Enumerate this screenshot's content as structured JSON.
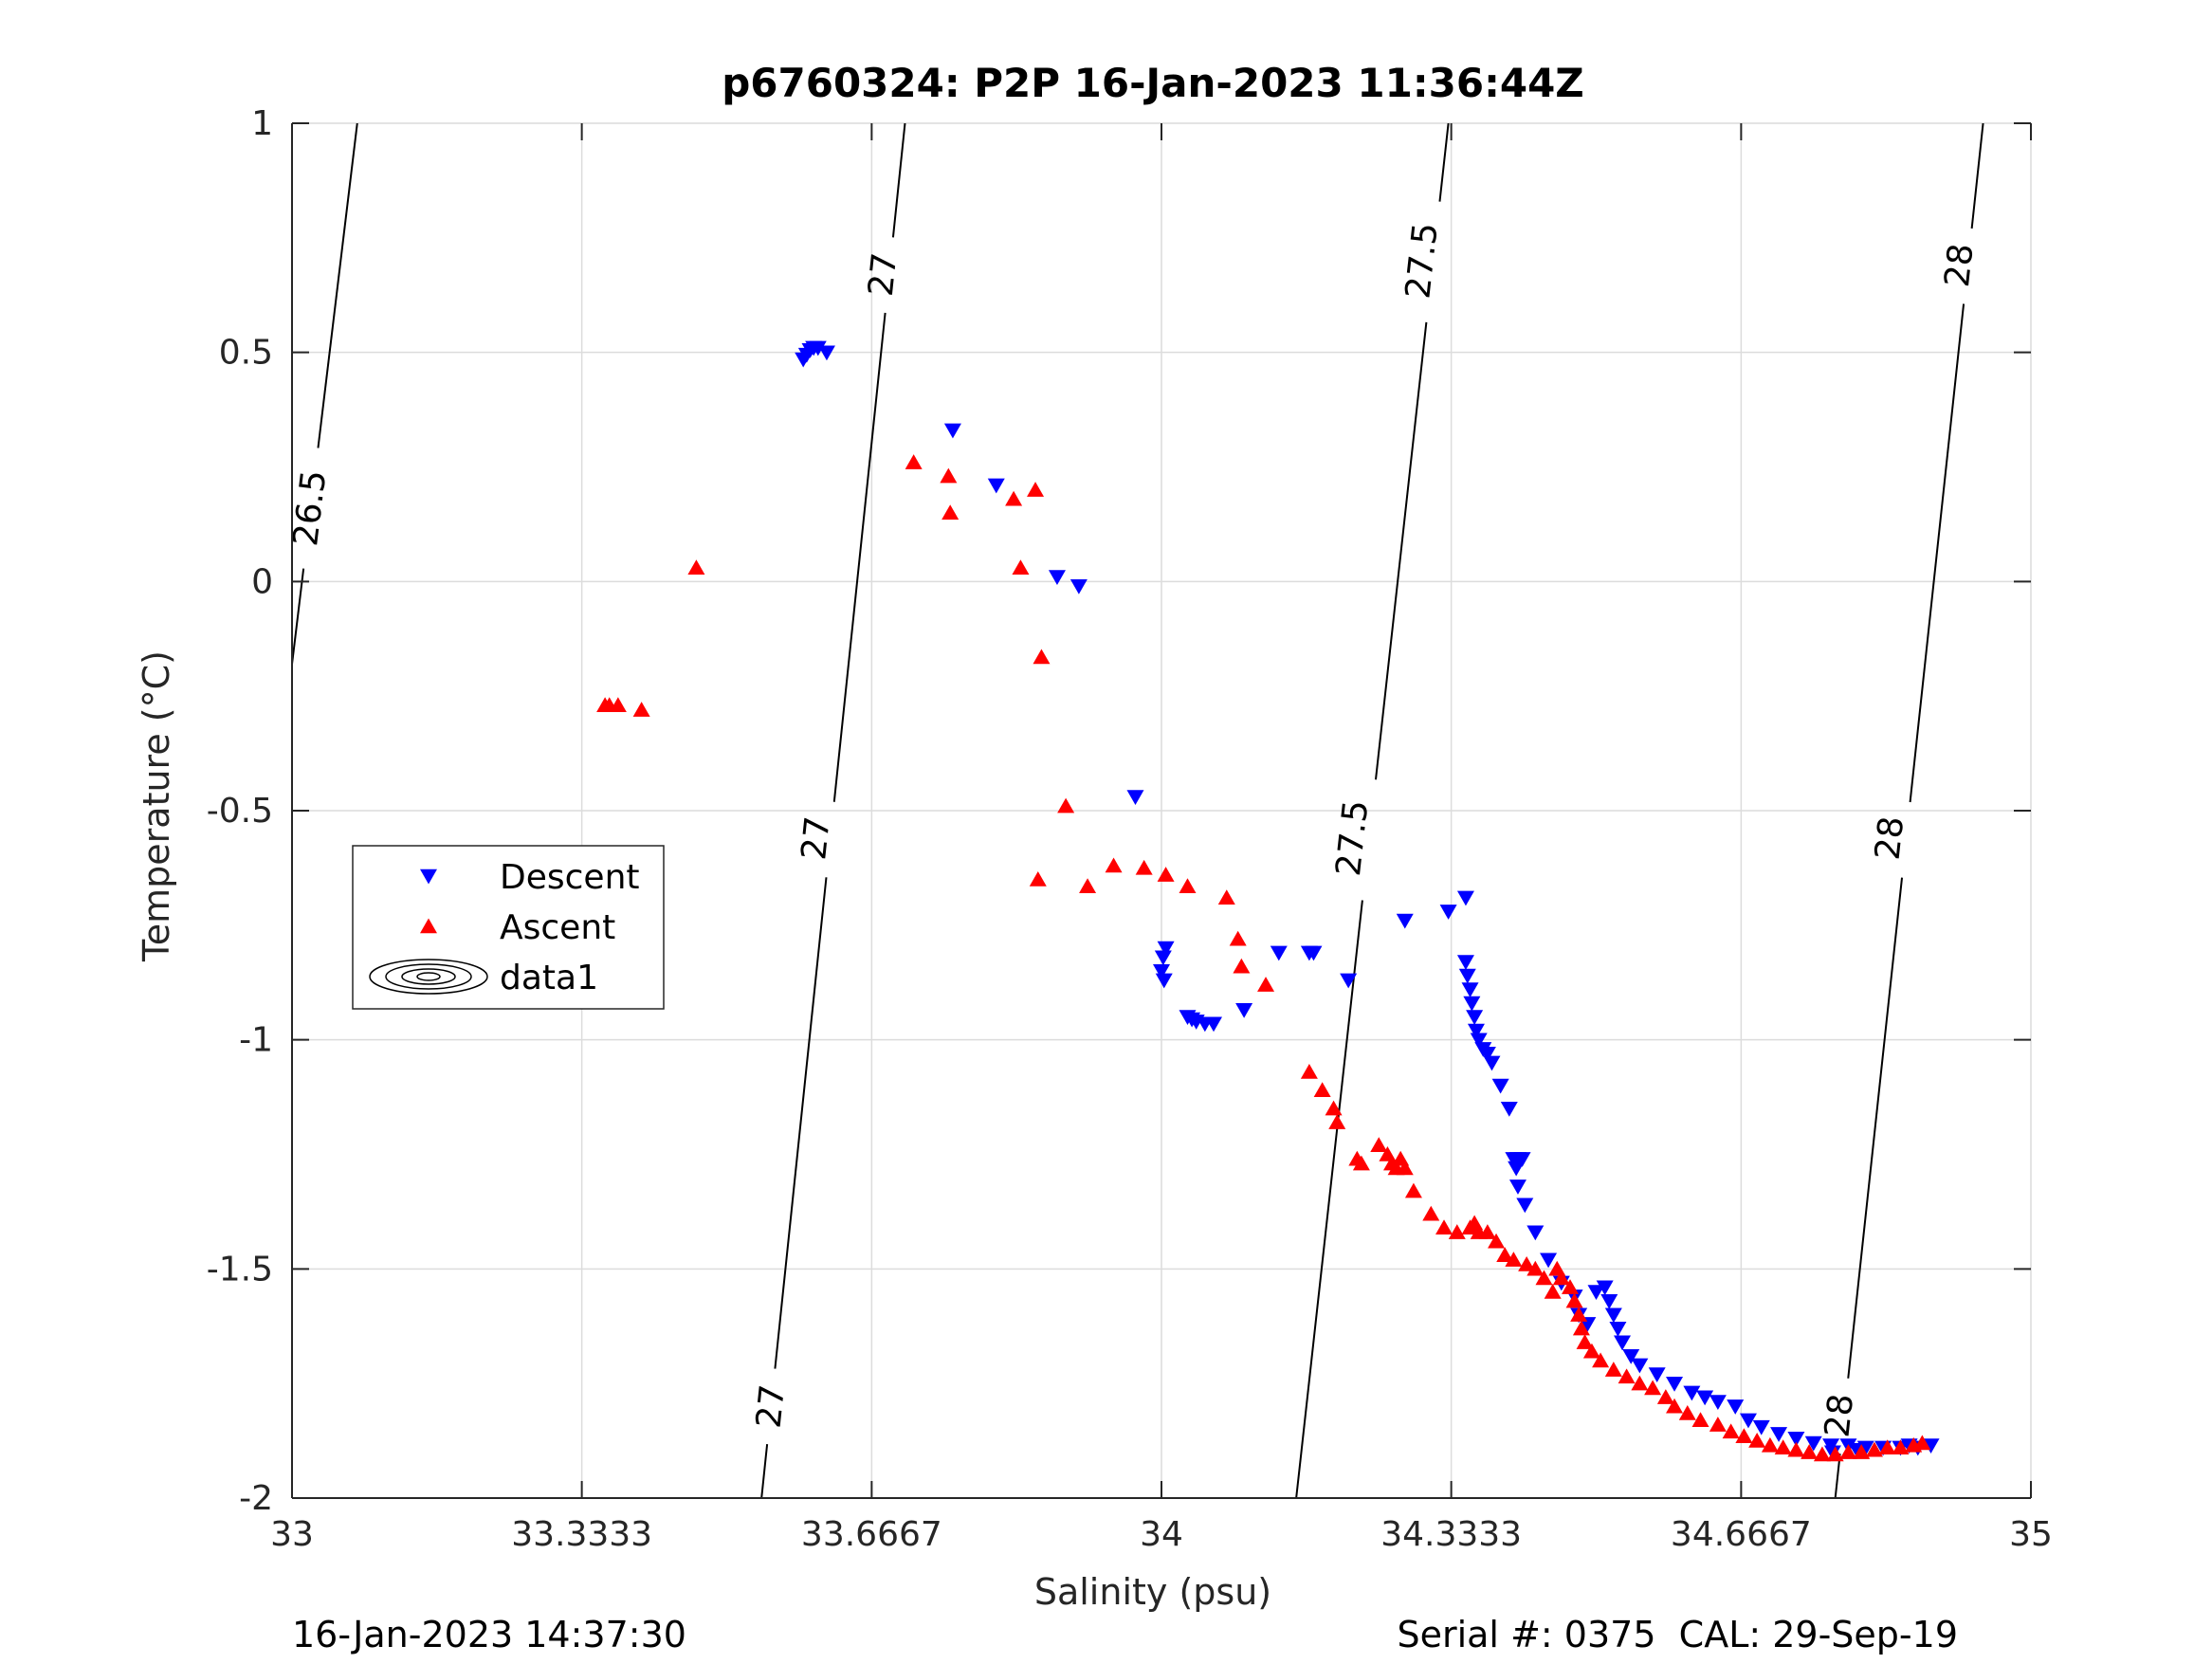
{
  "chart_data": {
    "type": "scatter",
    "title": "p6760324: P2P 16-Jan-2023 11:36:44Z",
    "xlabel": "Salinity (psu)",
    "ylabel": "Temperature (°C)",
    "xlim": [
      33,
      35
    ],
    "ylim": [
      -2,
      1
    ],
    "xticks": [
      33,
      33.3333,
      33.6667,
      34,
      34.3333,
      34.6667,
      35
    ],
    "xtick_labels": [
      "33",
      "33.3333",
      "33.6667",
      "34",
      "34.3333",
      "34.6667",
      "35"
    ],
    "yticks": [
      -2,
      -1.5,
      -1,
      -0.5,
      0,
      0.5,
      1
    ],
    "ytick_labels": [
      "-2",
      "-1.5",
      "-1",
      "-0.5",
      "0",
      "0.5",
      "1"
    ],
    "grid": true,
    "legend": {
      "location": "middle-left",
      "entries": [
        {
          "label": "Descent",
          "marker": "triangle-down",
          "color": "#0000ff"
        },
        {
          "label": "Ascent",
          "marker": "triangle-up",
          "color": "#ff0000"
        },
        {
          "label": "data1",
          "marker": "contour",
          "color": "#000000"
        }
      ]
    },
    "series": [
      {
        "name": "Descent",
        "marker": "triangle-down",
        "color": "#0000ff",
        "points": [
          [
            33.588,
            0.485
          ],
          [
            33.592,
            0.495
          ],
          [
            33.596,
            0.505
          ],
          [
            33.6,
            0.51
          ],
          [
            33.605,
            0.51
          ],
          [
            33.615,
            0.5
          ],
          [
            33.76,
            0.33
          ],
          [
            33.81,
            0.21
          ],
          [
            33.88,
            0.01
          ],
          [
            33.905,
            -0.01
          ],
          [
            33.97,
            -0.47
          ],
          [
            34.005,
            -0.8
          ],
          [
            34.002,
            -0.82
          ],
          [
            34.0,
            -0.85
          ],
          [
            34.003,
            -0.87
          ],
          [
            34.03,
            -0.95
          ],
          [
            34.035,
            -0.955
          ],
          [
            34.04,
            -0.96
          ],
          [
            34.05,
            -0.965
          ],
          [
            34.06,
            -0.965
          ],
          [
            34.095,
            -0.935
          ],
          [
            34.135,
            -0.81
          ],
          [
            34.17,
            -0.81
          ],
          [
            34.175,
            -0.81
          ],
          [
            34.215,
            -0.87
          ],
          [
            34.28,
            -0.74
          ],
          [
            34.33,
            -0.72
          ],
          [
            34.35,
            -0.69
          ],
          [
            34.35,
            -0.83
          ],
          [
            34.352,
            -0.86
          ],
          [
            34.355,
            -0.89
          ],
          [
            34.357,
            -0.92
          ],
          [
            34.36,
            -0.95
          ],
          [
            34.362,
            -0.98
          ],
          [
            34.365,
            -1.0
          ],
          [
            34.37,
            -1.02
          ],
          [
            34.375,
            -1.03
          ],
          [
            34.38,
            -1.05
          ],
          [
            34.39,
            -1.1
          ],
          [
            34.4,
            -1.15
          ],
          [
            34.405,
            -1.26
          ],
          [
            34.41,
            -1.26
          ],
          [
            34.415,
            -1.26
          ],
          [
            34.408,
            -1.28
          ],
          [
            34.41,
            -1.32
          ],
          [
            34.418,
            -1.36
          ],
          [
            34.43,
            -1.42
          ],
          [
            34.445,
            -1.48
          ],
          [
            34.46,
            -1.53
          ],
          [
            34.475,
            -1.56
          ],
          [
            34.48,
            -1.6
          ],
          [
            34.49,
            -1.62
          ],
          [
            34.5,
            -1.55
          ],
          [
            34.51,
            -1.54
          ],
          [
            34.515,
            -1.57
          ],
          [
            34.52,
            -1.6
          ],
          [
            34.525,
            -1.63
          ],
          [
            34.53,
            -1.66
          ],
          [
            34.54,
            -1.69
          ],
          [
            34.55,
            -1.71
          ],
          [
            34.57,
            -1.73
          ],
          [
            34.59,
            -1.75
          ],
          [
            34.61,
            -1.77
          ],
          [
            34.625,
            -1.78
          ],
          [
            34.64,
            -1.79
          ],
          [
            34.66,
            -1.8
          ],
          [
            34.675,
            -1.83
          ],
          [
            34.69,
            -1.845
          ],
          [
            34.71,
            -1.86
          ],
          [
            34.73,
            -1.87
          ],
          [
            34.75,
            -1.88
          ],
          [
            34.77,
            -1.885
          ],
          [
            34.79,
            -1.885
          ],
          [
            34.81,
            -1.89
          ],
          [
            34.83,
            -1.89
          ],
          [
            34.85,
            -1.89
          ],
          [
            34.87,
            -1.89
          ],
          [
            34.885,
            -1.885
          ],
          [
            34.772,
            -1.9
          ],
          [
            34.8,
            -1.895
          ],
          [
            34.86,
            -1.885
          ]
        ]
      },
      {
        "name": "Ascent",
        "marker": "triangle-up",
        "color": "#ff0000",
        "points": [
          [
            33.465,
            0.03
          ],
          [
            33.36,
            -0.27
          ],
          [
            33.365,
            -0.27
          ],
          [
            33.375,
            -0.27
          ],
          [
            33.402,
            -0.28
          ],
          [
            33.715,
            0.26
          ],
          [
            33.755,
            0.23
          ],
          [
            33.757,
            0.15
          ],
          [
            33.83,
            0.18
          ],
          [
            33.855,
            0.2
          ],
          [
            33.838,
            0.03
          ],
          [
            33.862,
            -0.165
          ],
          [
            33.89,
            -0.49
          ],
          [
            33.858,
            -0.65
          ],
          [
            33.915,
            -0.665
          ],
          [
            33.945,
            -0.62
          ],
          [
            33.98,
            -0.625
          ],
          [
            34.005,
            -0.64
          ],
          [
            34.03,
            -0.665
          ],
          [
            34.075,
            -0.69
          ],
          [
            34.088,
            -0.78
          ],
          [
            34.092,
            -0.84
          ],
          [
            34.12,
            -0.88
          ],
          [
            34.17,
            -1.07
          ],
          [
            34.185,
            -1.11
          ],
          [
            34.198,
            -1.15
          ],
          [
            34.202,
            -1.18
          ],
          [
            34.225,
            -1.26
          ],
          [
            34.23,
            -1.27
          ],
          [
            34.25,
            -1.23
          ],
          [
            34.26,
            -1.25
          ],
          [
            34.265,
            -1.27
          ],
          [
            34.27,
            -1.28
          ],
          [
            34.275,
            -1.26
          ],
          [
            34.28,
            -1.28
          ],
          [
            34.29,
            -1.33
          ],
          [
            34.31,
            -1.38
          ],
          [
            34.325,
            -1.41
          ],
          [
            34.34,
            -1.42
          ],
          [
            34.355,
            -1.41
          ],
          [
            34.36,
            -1.4
          ],
          [
            34.365,
            -1.42
          ],
          [
            34.375,
            -1.42
          ],
          [
            34.385,
            -1.44
          ],
          [
            34.395,
            -1.47
          ],
          [
            34.405,
            -1.48
          ],
          [
            34.42,
            -1.49
          ],
          [
            34.43,
            -1.5
          ],
          [
            34.44,
            -1.52
          ],
          [
            34.45,
            -1.55
          ],
          [
            34.455,
            -1.5
          ],
          [
            34.46,
            -1.52
          ],
          [
            34.47,
            -1.54
          ],
          [
            34.475,
            -1.57
          ],
          [
            34.48,
            -1.6
          ],
          [
            34.483,
            -1.63
          ],
          [
            34.487,
            -1.66
          ],
          [
            34.495,
            -1.68
          ],
          [
            34.505,
            -1.7
          ],
          [
            34.52,
            -1.72
          ],
          [
            34.535,
            -1.735
          ],
          [
            34.55,
            -1.75
          ],
          [
            34.565,
            -1.76
          ],
          [
            34.58,
            -1.78
          ],
          [
            34.59,
            -1.8
          ],
          [
            34.605,
            -1.815
          ],
          [
            34.62,
            -1.83
          ],
          [
            34.64,
            -1.84
          ],
          [
            34.655,
            -1.855
          ],
          [
            34.67,
            -1.865
          ],
          [
            34.685,
            -1.875
          ],
          [
            34.7,
            -1.885
          ],
          [
            34.715,
            -1.89
          ],
          [
            34.73,
            -1.895
          ],
          [
            34.745,
            -1.9
          ],
          [
            34.76,
            -1.905
          ],
          [
            34.775,
            -1.905
          ],
          [
            34.79,
            -1.9
          ],
          [
            34.805,
            -1.9
          ],
          [
            34.82,
            -1.895
          ],
          [
            34.835,
            -1.89
          ],
          [
            34.85,
            -1.89
          ],
          [
            34.865,
            -1.885
          ],
          [
            34.875,
            -1.88
          ]
        ]
      }
    ],
    "contours": [
      {
        "level": "26.5",
        "points": [
          [
            33.0,
            -0.18
          ],
          [
            33.075,
            1.0
          ]
        ],
        "labels": [
          [
            33.021,
            0.16
          ]
        ]
      },
      {
        "level": "27",
        "points": [
          [
            33.54,
            -2.0
          ],
          [
            33.705,
            1.0
          ]
        ],
        "labels": [
          [
            33.551,
            -1.8
          ],
          [
            33.603,
            -0.56
          ],
          [
            33.68,
            0.67
          ]
        ]
      },
      {
        "level": "27.5",
        "points": [
          [
            34.155,
            -2.0
          ],
          [
            34.33,
            1.0
          ]
        ],
        "labels": [
          [
            34.22,
            -0.56
          ],
          [
            34.3,
            0.7
          ]
        ]
      },
      {
        "level": "28",
        "points": [
          [
            34.775,
            -2.0
          ],
          [
            34.945,
            1.0
          ]
        ],
        "labels": [
          [
            34.78,
            -1.82
          ],
          [
            34.838,
            -0.56
          ],
          [
            34.918,
            0.69
          ]
        ]
      }
    ]
  },
  "footer": {
    "left": "16-Jan-2023 14:37:30",
    "right": "Serial #: 0375  CAL: 29-Sep-19"
  }
}
